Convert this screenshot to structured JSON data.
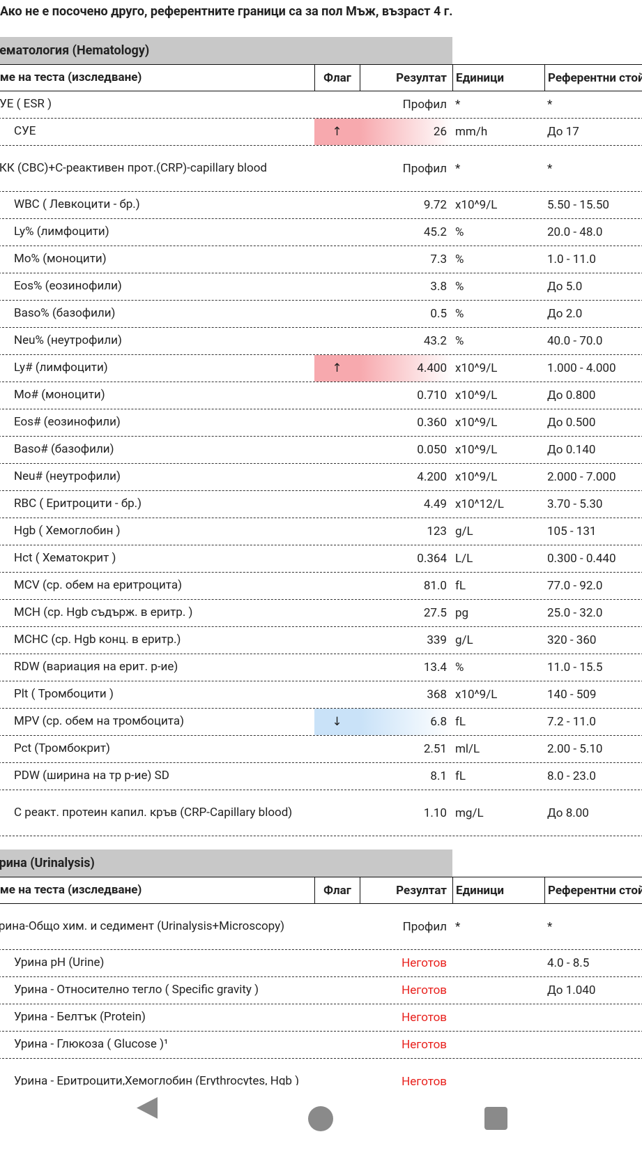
{
  "header": {
    "note": "Ако не е посочено друго, референтните граници са за пол Мъж, възраст 4 г."
  },
  "sections": [
    {
      "title": "Хематология (Hematology)",
      "columns": [
        "Име на теста (изследване)",
        "Флаг",
        "Резултат",
        "Единици",
        "Референтни стойности"
      ],
      "rows": [
        {
          "level": 0,
          "name": "СУЕ ( ESR )",
          "result": "Профил",
          "units": "*",
          "ref": "*"
        },
        {
          "level": 1,
          "name": "СУЕ",
          "flag": "↑",
          "flag_color": "#f7a9ae",
          "result": "26",
          "units": "mm/h",
          "ref": "До 17"
        },
        {
          "level": 0,
          "name": "ККК (CBC)+С-реактивен прот.(CRP)-capillary blood",
          "result": "Профил",
          "units": "*",
          "ref": "*"
        },
        {
          "level": 1,
          "name": "WBC ( Левкоцити - бр.)",
          "result": "9.72",
          "units": "x10^9/L",
          "ref": "5.50 - 15.50"
        },
        {
          "level": 1,
          "name": "Ly% (лимфоцити)",
          "result": "45.2",
          "units": "%",
          "ref": "20.0 - 48.0"
        },
        {
          "level": 1,
          "name": "Mo% (моноцити)",
          "result": "7.3",
          "units": "%",
          "ref": "1.0 - 11.0"
        },
        {
          "level": 1,
          "name": "Eos% (еозинофили)",
          "result": "3.8",
          "units": "%",
          "ref": "До 5.0"
        },
        {
          "level": 1,
          "name": "Baso% (базофили)",
          "result": "0.5",
          "units": "%",
          "ref": "До 2.0"
        },
        {
          "level": 1,
          "name": "Neu% (неутрофили)",
          "result": "43.2",
          "units": "%",
          "ref": "40.0 - 70.0"
        },
        {
          "level": 1,
          "name": "Ly# (лимфоцити)",
          "flag": "↑",
          "flag_color": "#f7a9ae",
          "result": "4.400",
          "units": "x10^9/L",
          "ref": "1.000 - 4.000"
        },
        {
          "level": 1,
          "name": "Mo# (моноцити)",
          "result": "0.710",
          "units": "x10^9/L",
          "ref": "До 0.800"
        },
        {
          "level": 1,
          "name": "Eos# (еозинофили)",
          "result": "0.360",
          "units": "x10^9/L",
          "ref": "До 0.500"
        },
        {
          "level": 1,
          "name": "Baso# (базофили)",
          "result": "0.050",
          "units": "x10^9/L",
          "ref": "До 0.140"
        },
        {
          "level": 1,
          "name": "Neu# (неутрофили)",
          "result": "4.200",
          "units": "x10^9/L",
          "ref": "2.000 - 7.000"
        },
        {
          "level": 1,
          "name": "RBC ( Еритроцити - бр.)",
          "result": "4.49",
          "units": "x10^12/L",
          "ref": "3.70 - 5.30"
        },
        {
          "level": 1,
          "name": "Hgb ( Хемоглобин )",
          "result": "123",
          "units": "g/L",
          "ref": "105 - 131"
        },
        {
          "level": 1,
          "name": "Hct ( Хематокрит )",
          "result": "0.364",
          "units": "L/L",
          "ref": "0.300 - 0.440"
        },
        {
          "level": 1,
          "name": "MCV (ср. обем на еритроцита)",
          "result": "81.0",
          "units": "fL",
          "ref": "77.0 - 92.0"
        },
        {
          "level": 1,
          "name": "MCH (ср. Hgb съдърж. в еритр. )",
          "result": "27.5",
          "units": "pg",
          "ref": "25.0 - 32.0"
        },
        {
          "level": 1,
          "name": "MCHC (ср. Hgb конц. в еритр.)",
          "result": "339",
          "units": "g/L",
          "ref": "320 - 360"
        },
        {
          "level": 1,
          "name": "RDW (вариация на ерит. р-ие)",
          "result": "13.4",
          "units": "%",
          "ref": "11.0 - 15.5"
        },
        {
          "level": 1,
          "name": "Plt ( Тромбоцити )",
          "result": "368",
          "units": "x10^9/L",
          "ref": "140 - 509"
        },
        {
          "level": 1,
          "name": "MPV (ср. обем на тромбоцита)",
          "flag": "↓",
          "flag_color": "#c9e2f8",
          "result": "6.8",
          "units": "fL",
          "ref": "7.2 - 11.0"
        },
        {
          "level": 1,
          "name": "Pct (Тромбокрит)",
          "result": "2.51",
          "units": "ml/L",
          "ref": "2.00 - 5.10"
        },
        {
          "level": 1,
          "name": "PDW (ширина на тр р-ие) SD",
          "result": "8.1",
          "units": "fL",
          "ref": "8.0 - 23.0"
        },
        {
          "level": 1,
          "name": "С реакт. протеин капил. кръв (CRP-Capillary blood)",
          "result": "1.10",
          "units": "mg/L",
          "ref": "До 8.00"
        }
      ]
    },
    {
      "title": "Урина (Urinalysis)",
      "columns": [
        "Име на теста (изследване)",
        "Флаг",
        "Резултат",
        "Единици",
        "Референтни стойности"
      ],
      "rows": [
        {
          "level": 0,
          "name": "Урина-Общо хим. и седимент (Urinalysis+Microscopy)",
          "result": "Профил",
          "units": "*",
          "ref": "*"
        },
        {
          "level": 1,
          "name": "Урина pH (Urine)",
          "result": "Неготов",
          "result_color": "#e8201c",
          "ref": "4.0 - 8.5"
        },
        {
          "level": 1,
          "name": "Урина - Относително тегло ( Specific gravity )",
          "result": "Неготов",
          "result_color": "#e8201c",
          "ref": "До 1.040"
        },
        {
          "level": 1,
          "name": "Урина - Белтък (Protein)",
          "result": "Неготов",
          "result_color": "#e8201c"
        },
        {
          "level": 1,
          "name": "Урина - Глюкоза ( Glucose )¹",
          "result": "Неготов",
          "result_color": "#e8201c"
        },
        {
          "level": 1,
          "name": "Урина - Еритроцити,Хемоглобин (Erythrocytes, Hgb )",
          "result": "Неготов",
          "result_color": "#e8201c"
        }
      ]
    }
  ]
}
